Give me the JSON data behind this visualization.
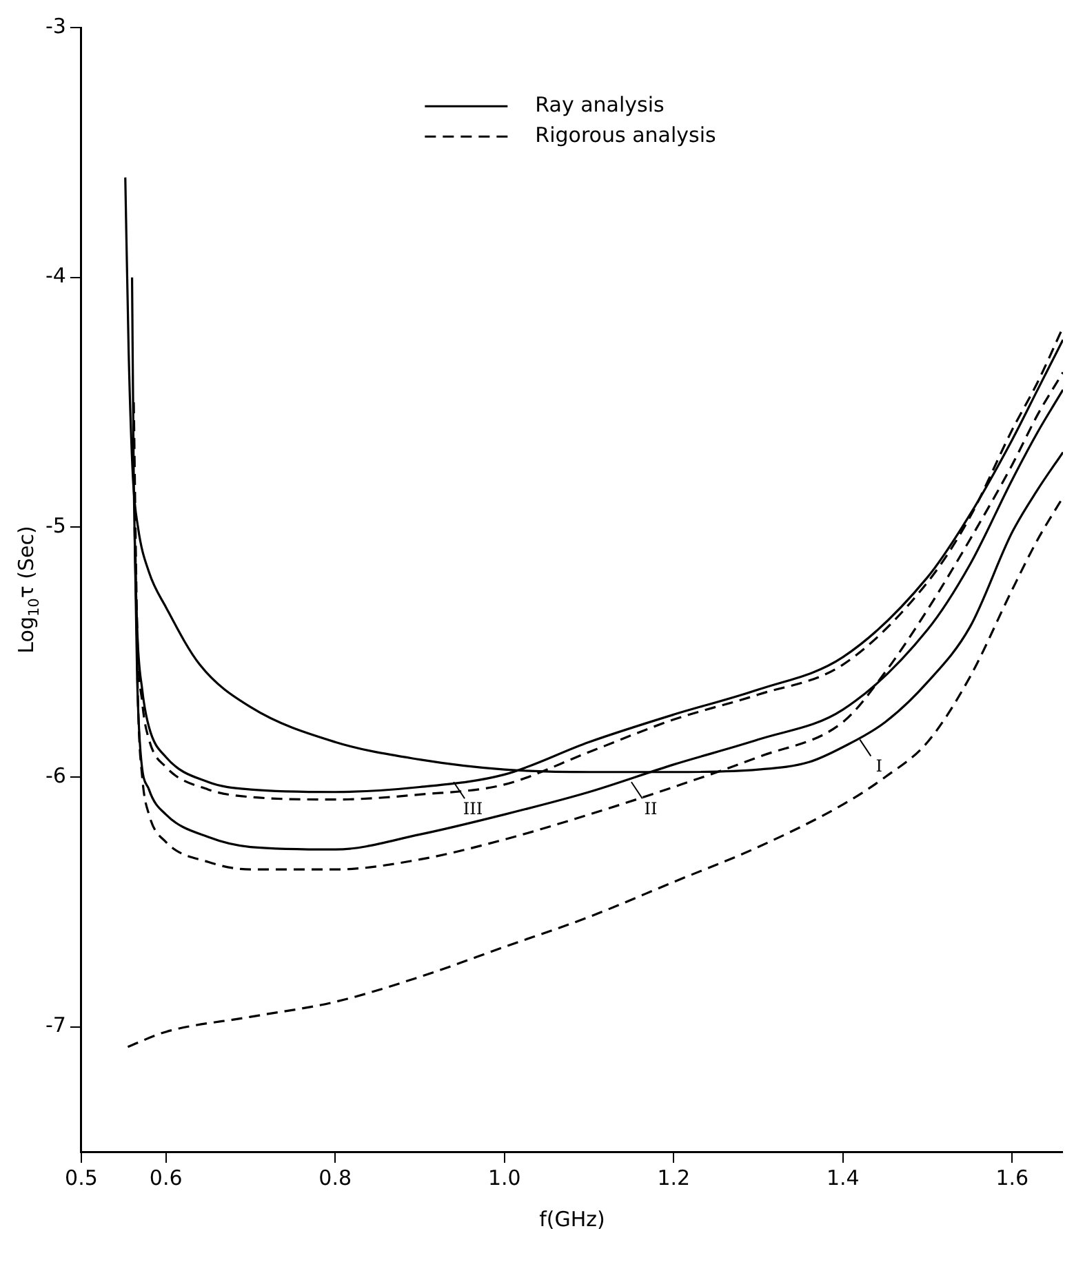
{
  "chart_data": {
    "type": "line",
    "xlabel": "f(GHz)",
    "ylabel": "Log$_{10}$τ (Sec)",
    "xlim": [
      0.5,
      1.66
    ],
    "ylim": [
      -7.5,
      -3
    ],
    "xticks": [
      0.5,
      0.6,
      0.8,
      {
        "value": 1,
        "label": "1.0"
      },
      1.2,
      1.4,
      1.6
    ],
    "yticks": [
      -3,
      -4,
      -5,
      -6,
      -7
    ],
    "grid": false,
    "legend": "top",
    "marker": "none",
    "series": [
      {
        "name": "Ray analysis",
        "color": "#000000",
        "line_style": "solid",
        "x": [
          0.552,
          0.556,
          0.561,
          0.567,
          0.58,
          0.6,
          0.64,
          0.7,
          0.8,
          0.9,
          1.0,
          1.1,
          1.2,
          1.3,
          1.36,
          1.4,
          1.45,
          1.5,
          1.55,
          1.6,
          1.63,
          1.66
        ],
        "values": [
          -3.6,
          -4.3,
          -4.8,
          -5.0,
          -5.18,
          -5.32,
          -5.55,
          -5.72,
          -5.86,
          -5.93,
          -5.97,
          -5.98,
          -5.98,
          -5.97,
          -5.94,
          -5.88,
          -5.78,
          -5.62,
          -5.4,
          -5.02,
          -4.85,
          -4.7
        ]
      },
      {
        "name": "Rigorous analysis",
        "color": "#000000",
        "line_style": "dashed",
        "x": [
          0.555,
          0.6,
          0.7,
          0.8,
          0.9,
          1.0,
          1.1,
          1.2,
          1.3,
          1.4,
          1.45,
          1.5,
          1.55,
          1.6,
          1.63,
          1.66
        ],
        "values": [
          -7.08,
          -7.02,
          -6.96,
          -6.9,
          -6.8,
          -6.68,
          -6.56,
          -6.42,
          -6.28,
          -6.11,
          -6.0,
          -5.86,
          -5.6,
          -5.25,
          -5.05,
          -4.88
        ]
      },
      {
        "color": "#000000",
        "line_style": "solid",
        "x": [
          0.56,
          0.562,
          0.566,
          0.572,
          0.58,
          0.6,
          0.65,
          0.7,
          0.8,
          0.9,
          1.0,
          1.1,
          1.2,
          1.3,
          1.4,
          1.5,
          1.55,
          1.6,
          1.63,
          1.66
        ],
        "values": [
          -4.0,
          -4.8,
          -5.4,
          -5.65,
          -5.8,
          -5.92,
          -6.02,
          -6.05,
          -6.06,
          -6.04,
          -5.99,
          -5.86,
          -5.75,
          -5.65,
          -5.52,
          -5.2,
          -4.95,
          -4.65,
          -4.45,
          -4.25
        ]
      },
      {
        "color": "#000000",
        "line_style": "dashed",
        "x": [
          0.562,
          0.566,
          0.572,
          0.58,
          0.6,
          0.65,
          0.7,
          0.8,
          0.9,
          1.0,
          1.1,
          1.2,
          1.3,
          1.4,
          1.5,
          1.55,
          1.6,
          1.63,
          1.66
        ],
        "values": [
          -4.5,
          -5.4,
          -5.7,
          -5.85,
          -5.96,
          -6.05,
          -6.08,
          -6.09,
          -6.07,
          -6.03,
          -5.9,
          -5.77,
          -5.67,
          -5.55,
          -5.22,
          -4.96,
          -4.61,
          -4.42,
          -4.2
        ]
      },
      {
        "color": "#000000",
        "line_style": "solid",
        "x": [
          0.563,
          0.566,
          0.57,
          0.58,
          0.6,
          0.65,
          0.7,
          0.8,
          0.9,
          1.0,
          1.1,
          1.2,
          1.3,
          1.4,
          1.5,
          1.55,
          1.6,
          1.63,
          1.66
        ],
        "values": [
          -5.0,
          -5.6,
          -5.9,
          -6.05,
          -6.15,
          -6.24,
          -6.28,
          -6.29,
          -6.23,
          -6.15,
          -6.06,
          -5.95,
          -5.85,
          -5.73,
          -5.41,
          -5.15,
          -4.81,
          -4.62,
          -4.45
        ]
      },
      {
        "color": "#000000",
        "line_style": "dashed",
        "x": [
          0.564,
          0.567,
          0.572,
          0.58,
          0.6,
          0.65,
          0.7,
          0.8,
          0.9,
          1.0,
          1.1,
          1.2,
          1.3,
          1.4,
          1.45,
          1.5,
          1.55,
          1.6,
          1.63,
          1.66
        ],
        "values": [
          -5.1,
          -5.7,
          -6.0,
          -6.15,
          -6.26,
          -6.34,
          -6.37,
          -6.37,
          -6.33,
          -6.25,
          -6.15,
          -6.04,
          -5.92,
          -5.78,
          -5.58,
          -5.33,
          -5.05,
          -4.75,
          -4.55,
          -4.38
        ]
      }
    ],
    "annotations": [
      {
        "text": "III",
        "x": 0.94,
        "y": -6.02
      },
      {
        "text": "II",
        "x": 1.15,
        "y": -6.02
      },
      {
        "text": "I",
        "x": 1.42,
        "y": -5.85
      }
    ]
  }
}
